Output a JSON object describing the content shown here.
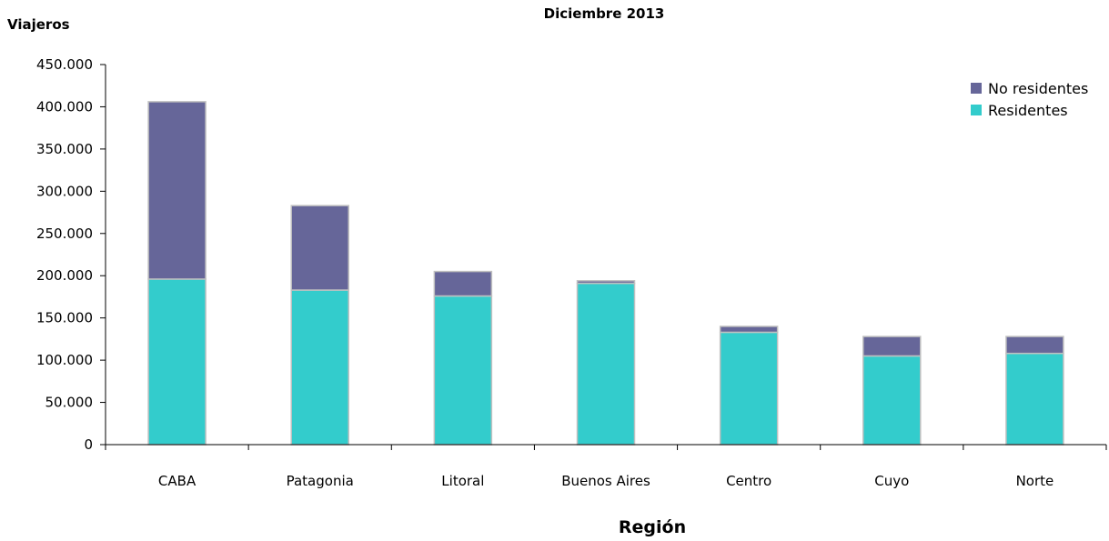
{
  "chart_data": {
    "type": "bar",
    "stacked": true,
    "title": "Diciembre 2013",
    "ylabel": "Viajeros",
    "xlabel": "Región",
    "ylim": [
      0,
      450000
    ],
    "yticks": [
      "0",
      "50.000",
      "100.000",
      "150.000",
      "200.000",
      "250.000",
      "300.000",
      "350.000",
      "400.000",
      "450.000"
    ],
    "categories": [
      "CABA",
      "Patagonia",
      "Litoral",
      "Buenos Aires",
      "Centro",
      "Cuyo",
      "Norte"
    ],
    "series": [
      {
        "name": "Residentes",
        "color": "#33CCCC",
        "values": [
          196000,
          183000,
          176000,
          191000,
          133000,
          105000,
          108000
        ]
      },
      {
        "name": "No residentes",
        "color": "#666699",
        "values": [
          210000,
          100000,
          29000,
          3000,
          7000,
          23000,
          20000
        ]
      }
    ],
    "legend": {
      "position": "top-right",
      "items": [
        "No residentes",
        "Residentes"
      ]
    },
    "grid": false
  }
}
